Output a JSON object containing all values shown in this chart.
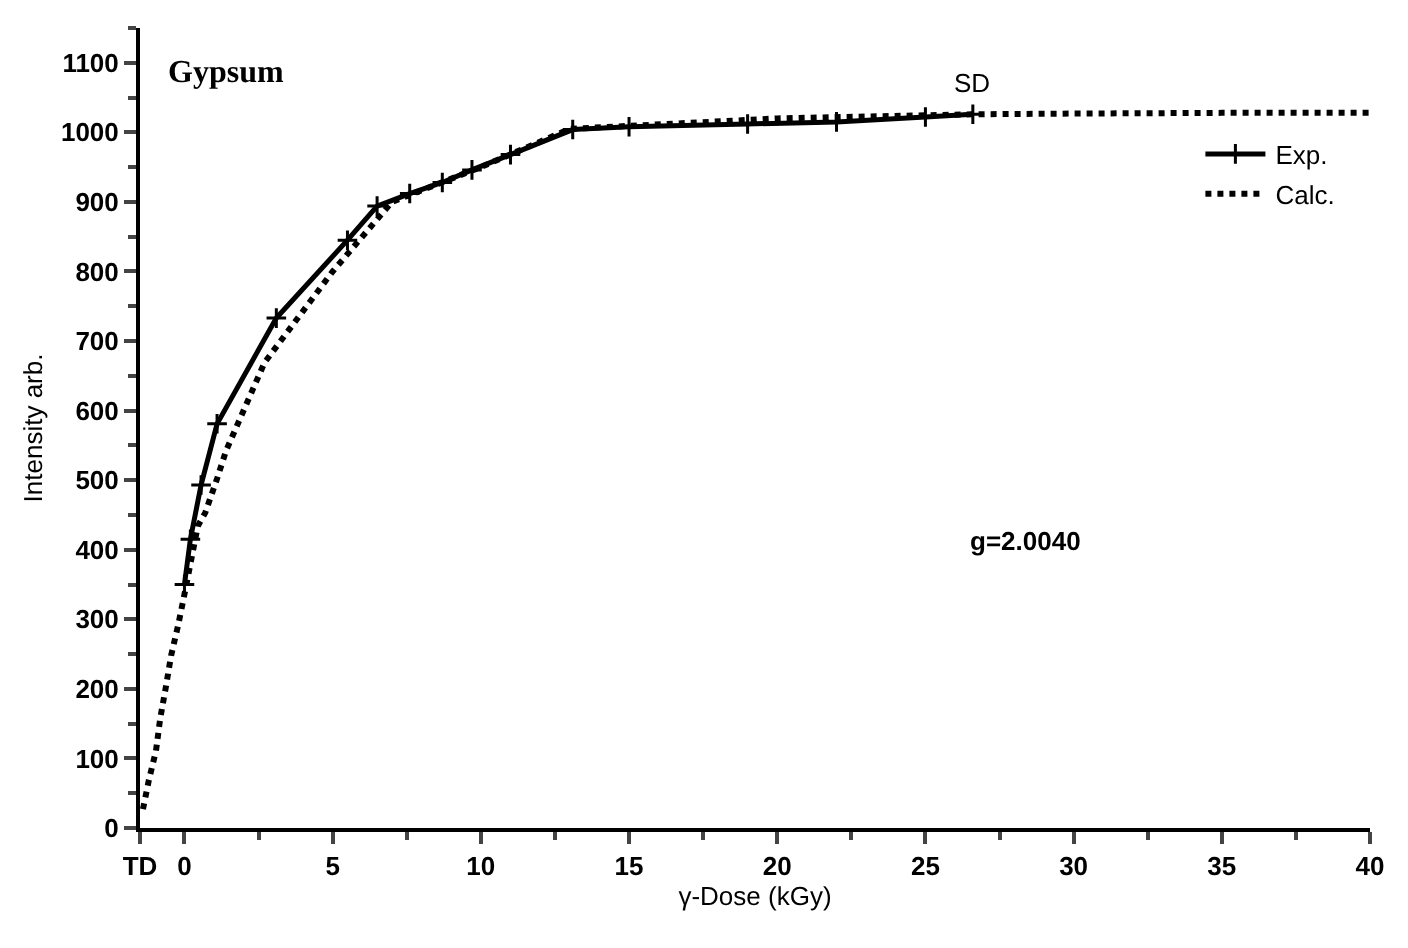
{
  "chart_data": {
    "type": "line",
    "xlabel": "γ-Dose (kGy)",
    "ylabel": "Intensity arb.",
    "xlim": [
      -1.5,
      40
    ],
    "ylim": [
      0,
      1150
    ],
    "xticks": [
      {
        "value": -1.5,
        "label": "TD"
      },
      0,
      5,
      10,
      15,
      20,
      25,
      30,
      35,
      40
    ],
    "yticks": [
      0,
      100,
      200,
      300,
      400,
      500,
      600,
      700,
      800,
      900,
      1000,
      1100
    ],
    "legend": "top right",
    "annotations": [
      "Gypsum",
      {
        "text": "SD",
        "x": 26.6,
        "y": 1026
      },
      "g=2.0040"
    ],
    "series": [
      {
        "name": "Exp.",
        "color": "#000000",
        "marker": "cross",
        "line_style": "solid",
        "x": [
          0,
          0.2,
          0.56,
          1.1,
          3.1,
          5.5,
          6.5,
          7.6,
          8.7,
          9.7,
          11,
          13.1,
          15,
          19,
          22,
          25,
          26.6
        ],
        "values": [
          350,
          415,
          493,
          581,
          733,
          845,
          894,
          912,
          928,
          946,
          968,
          1004,
          1008,
          1012,
          1015,
          1022,
          1026
        ]
      },
      {
        "name": "Calc.",
        "color": "#000000",
        "marker": "none",
        "line_style": "dotted",
        "x": [
          -1.4,
          -1.2,
          -0.96,
          -0.82,
          -0.63,
          -0.45,
          -0.21,
          0,
          0.45,
          0.7,
          1.1,
          1.4,
          1.85,
          2.3,
          2.7,
          5,
          7,
          10,
          13,
          20,
          26.6,
          30,
          35,
          40
        ],
        "values": [
          27,
          69,
          111,
          157,
          202,
          248,
          292,
          336,
          434,
          453,
          502,
          542,
          586,
          630,
          669,
          800,
          900,
          950,
          1005,
          1020,
          1026,
          1027,
          1028,
          1028
        ]
      }
    ]
  }
}
